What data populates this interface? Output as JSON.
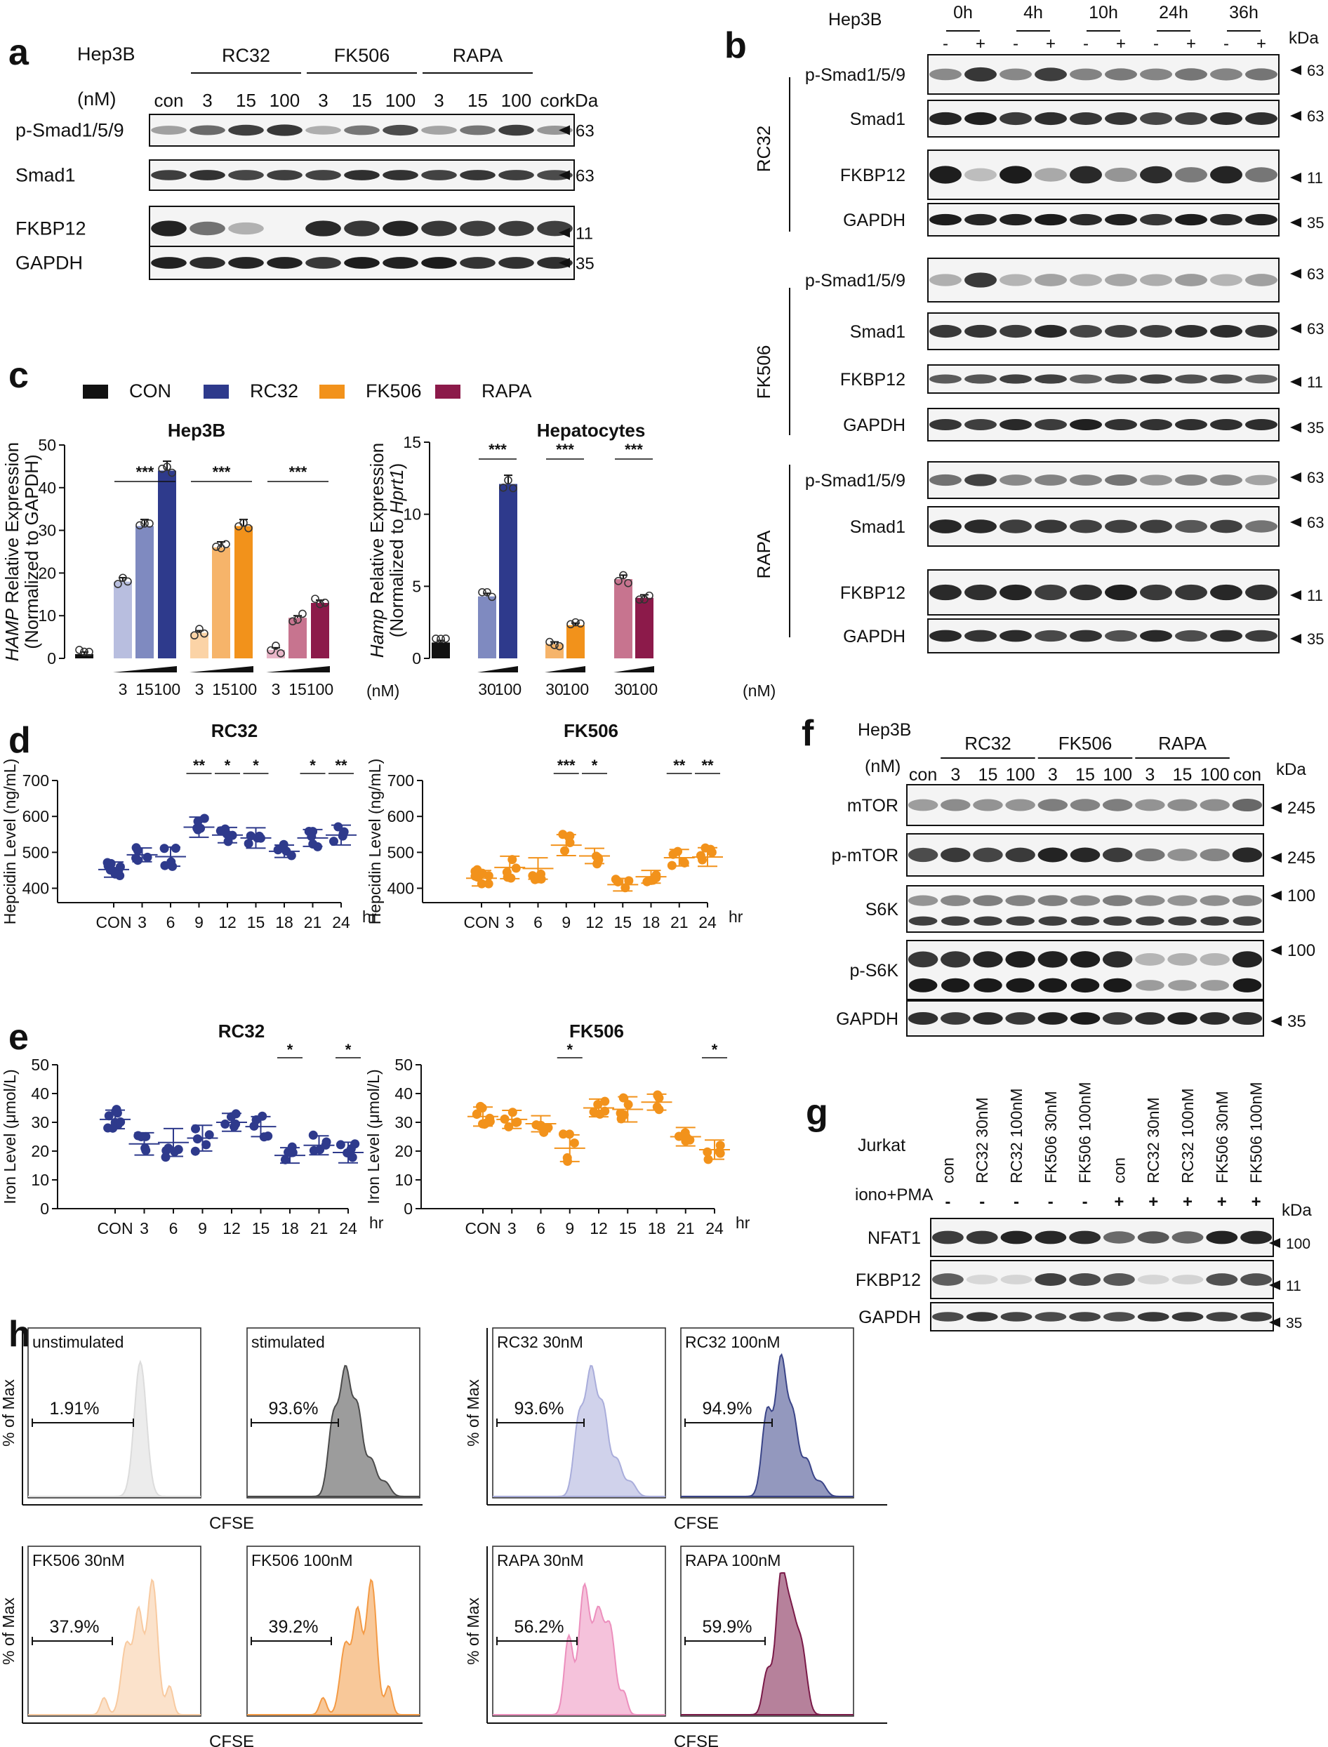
{
  "colors": {
    "con": "#111111",
    "rc32": "#2e3a8c",
    "fk506": "#f2921b",
    "rapa": "#8c1a4a",
    "rc32_light": "#b8bedf",
    "rc32_mid": "#7f8ac0",
    "fk506_light": "#fbd3a6",
    "fk506_mid": "#f6b46a",
    "rapa_light": "#e8b6c8",
    "rapa_mid": "#c7748f",
    "band": "#1a1a1a"
  },
  "panels": {
    "a": {
      "letter": "a",
      "cell": "Hep3B",
      "unit": "(nM)",
      "groups": [
        "RC32",
        "FK506",
        "RAPA"
      ],
      "lanes": [
        "con",
        "3",
        "15",
        "100",
        "3",
        "15",
        "100",
        "3",
        "15",
        "100",
        "con"
      ],
      "kda": "kDa",
      "blots": [
        {
          "name": "p-Smad1/5/9",
          "kda": "63"
        },
        {
          "name": "Smad1",
          "kda": "63"
        },
        {
          "name": "FKBP12",
          "kda": "11"
        },
        {
          "name": "GAPDH",
          "kda": "35"
        }
      ]
    },
    "b": {
      "letter": "b",
      "cell": "Hep3B",
      "times": [
        "0h",
        "4h",
        "10h",
        "24h",
        "36h"
      ],
      "signs": [
        "-",
        "+"
      ],
      "kda": "kDa",
      "groups": [
        {
          "name": "RC32",
          "blots": [
            {
              "name": "p-Smad1/5/9",
              "kda": "63"
            },
            {
              "name": "Smad1",
              "kda": "63"
            },
            {
              "name": "FKBP12",
              "kda": "11"
            },
            {
              "name": "GAPDH",
              "kda": "35"
            }
          ]
        },
        {
          "name": "FK506",
          "blots": [
            {
              "name": "p-Smad1/5/9",
              "kda": "63"
            },
            {
              "name": "Smad1",
              "kda": "63"
            },
            {
              "name": "FKBP12",
              "kda": "11"
            },
            {
              "name": "GAPDH",
              "kda": "35"
            }
          ]
        },
        {
          "name": "RAPA",
          "blots": [
            {
              "name": "p-Smad1/5/9",
              "kda": "63"
            },
            {
              "name": "Smad1",
              "kda": "63"
            },
            {
              "name": "FKBP12",
              "kda": "11"
            },
            {
              "name": "GAPDH",
              "kda": "35"
            }
          ]
        }
      ]
    },
    "c": {
      "letter": "c",
      "legend": [
        "CON",
        "RC32",
        "FK506",
        "RAPA"
      ],
      "unit": "(nM)"
    },
    "d": {
      "letter": "d"
    },
    "e": {
      "letter": "e"
    },
    "f": {
      "letter": "f",
      "cell": "Hep3B",
      "unit": "(nM)",
      "groups": [
        "RC32",
        "FK506",
        "RAPA"
      ],
      "lanes": [
        "con",
        "3",
        "15",
        "100",
        "3",
        "15",
        "100",
        "3",
        "15",
        "100",
        "con"
      ],
      "kda": "kDa",
      "blots": [
        {
          "name": "mTOR",
          "kda": "245"
        },
        {
          "name": "p-mTOR",
          "kda": "245"
        },
        {
          "name": "S6K",
          "kda": "100"
        },
        {
          "name": "p-S6K",
          "kda": "100"
        },
        {
          "name": "GAPDH",
          "kda": "35"
        }
      ]
    },
    "g": {
      "letter": "g",
      "cell": "Jurkat",
      "stim": "iono+PMA",
      "lanes": [
        "con",
        "RC32 30nM",
        "RC32 100nM",
        "FK506 30nM",
        "FK506 100nM",
        "con",
        "RC32 30nM",
        "RC32 100nM",
        "FK506 30nM",
        "FK506 100nM"
      ],
      "signs": [
        "-",
        "-",
        "-",
        "-",
        "-",
        "+",
        "+",
        "+",
        "+",
        "+"
      ],
      "kda": "kDa",
      "blots": [
        {
          "name": "NFAT1",
          "kda": "100"
        },
        {
          "name": "FKBP12",
          "kda": "11"
        },
        {
          "name": "GAPDH",
          "kda": "35"
        }
      ]
    },
    "h": {
      "letter": "h",
      "ylabel": "% of Max",
      "xlabel": "CFSE"
    }
  },
  "chart_data": [
    {
      "id": "c-hep3b",
      "type": "bar",
      "title": "Hep3B",
      "ylabel": "HAMP Relative Expression (Normalized to GAPDH)",
      "ylim": [
        0,
        50
      ],
      "yticks": [
        "0",
        "10",
        "20",
        "30",
        "40",
        "50"
      ],
      "xticks": [
        "3",
        "15",
        "100",
        "3",
        "15",
        "100",
        "3",
        "15",
        "100"
      ],
      "unit": "(nM)",
      "bars": [
        {
          "group": "CON",
          "value": 1
        },
        {
          "group": "RC32",
          "value": 18
        },
        {
          "group": "RC32",
          "value": 31
        },
        {
          "group": "RC32",
          "value": 44
        },
        {
          "group": "FK506",
          "value": 6
        },
        {
          "group": "FK506",
          "value": 26
        },
        {
          "group": "FK506",
          "value": 31
        },
        {
          "group": "RAPA",
          "value": 2
        },
        {
          "group": "RAPA",
          "value": 9.5
        },
        {
          "group": "RAPA",
          "value": 13
        }
      ],
      "sig": [
        "***",
        "***",
        "***"
      ]
    },
    {
      "id": "c-hepatocytes",
      "type": "bar",
      "title": "Hepatocytes",
      "ylabel": "Hamp Relative Expression (Normalized to Hprt1)",
      "ylim": [
        0,
        15
      ],
      "yticks": [
        "0",
        "5",
        "10",
        "15"
      ],
      "xticks": [
        "30",
        "100",
        "30",
        "100",
        "30",
        "100"
      ],
      "unit": "(nM)",
      "bars": [
        {
          "group": "CON",
          "value": 1.1
        },
        {
          "group": "RC32",
          "value": 4.3
        },
        {
          "group": "RC32",
          "value": 12.1
        },
        {
          "group": "FK506",
          "value": 1
        },
        {
          "group": "FK506",
          "value": 2.3
        },
        {
          "group": "RAPA",
          "value": 5.5
        },
        {
          "group": "RAPA",
          "value": 4.2
        }
      ],
      "sig": [
        "***",
        "***",
        "***"
      ]
    },
    {
      "id": "d-rc32",
      "type": "scatter",
      "title": "RC32",
      "ylabel": "Hepcidin Level (ng/mL)",
      "ylim": [
        360,
        700
      ],
      "yticks": [
        "400",
        "500",
        "600",
        "700"
      ],
      "categories": [
        "CON",
        "3",
        "6",
        "9",
        "12",
        "15",
        "18",
        "21",
        "24"
      ],
      "xunit": "hr",
      "means": [
        452,
        493,
        488,
        570,
        548,
        540,
        503,
        540,
        548
      ],
      "sig": {
        "9": "**",
        "12": "*",
        "15": "*",
        "21": "*",
        "24": "**"
      }
    },
    {
      "id": "d-fk506",
      "type": "scatter",
      "title": "FK506",
      "ylabel": "Hepcidin Level (ng/mL)",
      "ylim": [
        360,
        700
      ],
      "yticks": [
        "400",
        "500",
        "600",
        "700"
      ],
      "categories": [
        "CON",
        "3",
        "6",
        "9",
        "12",
        "15",
        "18",
        "21",
        "24"
      ],
      "xunit": "hr",
      "means": [
        428,
        458,
        455,
        520,
        490,
        410,
        432,
        485,
        487
      ],
      "sig": {
        "9": "***",
        "12": "*",
        "21": "**",
        "24": "**"
      }
    },
    {
      "id": "e-rc32",
      "type": "scatter",
      "title": "RC32",
      "ylabel": "Iron Level (μmol/L)",
      "ylim": [
        0,
        50
      ],
      "yticks": [
        "0",
        "10",
        "20",
        "30",
        "40",
        "50"
      ],
      "categories": [
        "CON",
        "3",
        "6",
        "9",
        "12",
        "15",
        "18",
        "21",
        "24"
      ],
      "xunit": "hr",
      "means": [
        31,
        22.5,
        23,
        24.5,
        30,
        28.5,
        18.5,
        22,
        19.5
      ],
      "sig": {
        "18": "*",
        "24": "*"
      }
    },
    {
      "id": "e-fk506",
      "type": "scatter",
      "title": "FK506",
      "ylabel": "Iron Level (μmol/L)",
      "ylim": [
        0,
        50
      ],
      "yticks": [
        "0",
        "10",
        "20",
        "30",
        "40",
        "50"
      ],
      "categories": [
        "CON",
        "3",
        "6",
        "9",
        "12",
        "15",
        "18",
        "21",
        "24"
      ],
      "xunit": "hr",
      "means": [
        32,
        31,
        29.5,
        21,
        35,
        34.5,
        37,
        25,
        20.5
      ],
      "sig": {
        "9": "*",
        "24": "*"
      }
    },
    {
      "id": "h-flow",
      "type": "area",
      "xlabel": "CFSE",
      "ylabel": "% of Max",
      "histograms": [
        {
          "label": "unstimulated",
          "percent": "1.91%"
        },
        {
          "label": "stimulated",
          "percent": "93.6%"
        },
        {
          "label": "RC32 30nM",
          "percent": "93.6%"
        },
        {
          "label": "RC32 100nM",
          "percent": "94.9%"
        },
        {
          "label": "FK506 30nM",
          "percent": "37.9%"
        },
        {
          "label": "FK506 100nM",
          "percent": "39.2%"
        },
        {
          "label": "RAPA 30nM",
          "percent": "56.2%"
        },
        {
          "label": "RAPA 100nM",
          "percent": "59.9%"
        }
      ]
    }
  ]
}
